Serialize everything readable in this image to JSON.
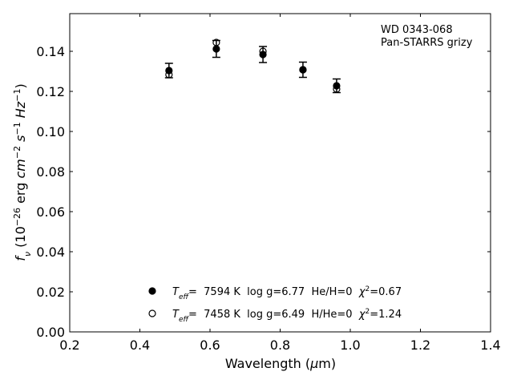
{
  "chart_data": {
    "type": "scatter",
    "annotations": [
      "WD 0343-068",
      "Pan-STARRS grizy"
    ],
    "xlabel": [
      "Wavelength (",
      "μ",
      "m)"
    ],
    "ylabel": [
      "f",
      "ν",
      " (10",
      "−26",
      " erg ",
      "cm",
      "−2",
      " s",
      "−1",
      " Hz",
      "−1",
      ")"
    ],
    "xlim": [
      0.2,
      1.4
    ],
    "xticks": [
      0.2,
      0.4,
      0.6,
      0.8,
      {
        "value": 1.0,
        "label": "1.0"
      },
      1.2,
      1.4
    ],
    "ylim": [
      0,
      0.1588
    ],
    "yticks": [
      {
        "value": 0,
        "label": "0.00"
      },
      {
        "value": 0.02,
        "label": "0.02"
      },
      {
        "value": 0.04,
        "label": "0.04"
      },
      {
        "value": 0.06,
        "label": "0.06"
      },
      {
        "value": 0.08,
        "label": "0.08"
      },
      {
        "value": 0.1,
        "label": "0.10"
      },
      {
        "value": 0.12,
        "label": "0.12"
      },
      {
        "value": 0.14,
        "label": "0.14"
      }
    ],
    "series": [
      {
        "name": [
          "T",
          "eff",
          "=  7594 K  log g=6.77  He/H=0  ",
          "χ",
          "2",
          "=0.67"
        ],
        "color": "#000000",
        "marker": "filled",
        "x": [
          0.483,
          0.618,
          0.751,
          0.865,
          0.961
        ],
        "values": [
          0.1304,
          0.1412,
          0.1384,
          0.1308,
          0.1228
        ],
        "errors": [
          0.0036,
          0.0042,
          0.004,
          0.0038,
          0.0034
        ]
      },
      {
        "name": [
          "T",
          "eff",
          "=  7458 K  log g=6.49  H/He=0  ",
          "χ",
          "2",
          "=1.24"
        ],
        "color": "#000000",
        "marker": "open",
        "x": [
          0.483,
          0.618,
          0.751,
          0.865,
          0.961
        ],
        "values": [
          0.1284,
          0.1444,
          0.14,
          0.1308,
          0.1212
        ]
      }
    ]
  }
}
